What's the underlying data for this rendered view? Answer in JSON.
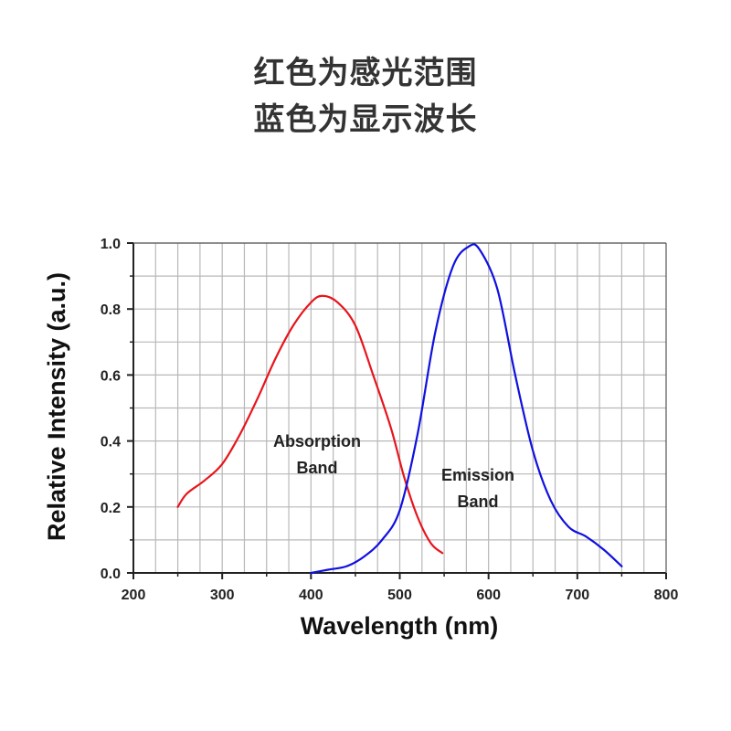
{
  "header": {
    "line1": "红色为感光范围",
    "line2": "蓝色为显示波长"
  },
  "chart_data": {
    "type": "line",
    "xlabel": "Wavelength (nm)",
    "ylabel": "Relative Intensity (a.u.)",
    "xlim": [
      200,
      800
    ],
    "ylim": [
      0,
      1.0
    ],
    "xticks": [
      "200",
      "300",
      "400",
      "500",
      "600",
      "700",
      "800"
    ],
    "yticks": [
      "0.0",
      "0.2",
      "0.4",
      "0.6",
      "0.8",
      "1.0"
    ],
    "grid": true,
    "series": [
      {
        "name": "Absorption Band",
        "color": "#e8141c",
        "points": [
          [
            250,
            0.2
          ],
          [
            260,
            0.24
          ],
          [
            280,
            0.28
          ],
          [
            300,
            0.33
          ],
          [
            320,
            0.42
          ],
          [
            340,
            0.53
          ],
          [
            360,
            0.65
          ],
          [
            380,
            0.75
          ],
          [
            400,
            0.82
          ],
          [
            413,
            0.84
          ],
          [
            430,
            0.82
          ],
          [
            450,
            0.75
          ],
          [
            470,
            0.6
          ],
          [
            490,
            0.44
          ],
          [
            505,
            0.29
          ],
          [
            520,
            0.17
          ],
          [
            535,
            0.09
          ],
          [
            548,
            0.06
          ]
        ]
      },
      {
        "name": "Emission Band",
        "color": "#1010e0",
        "points": [
          [
            400,
            0.0
          ],
          [
            420,
            0.01
          ],
          [
            440,
            0.02
          ],
          [
            460,
            0.05
          ],
          [
            480,
            0.1
          ],
          [
            500,
            0.19
          ],
          [
            520,
            0.42
          ],
          [
            540,
            0.73
          ],
          [
            560,
            0.93
          ],
          [
            578,
            0.99
          ],
          [
            590,
            0.98
          ],
          [
            610,
            0.86
          ],
          [
            630,
            0.6
          ],
          [
            650,
            0.37
          ],
          [
            670,
            0.22
          ],
          [
            690,
            0.14
          ],
          [
            710,
            0.11
          ],
          [
            730,
            0.07
          ],
          [
            750,
            0.02
          ]
        ]
      }
    ]
  }
}
